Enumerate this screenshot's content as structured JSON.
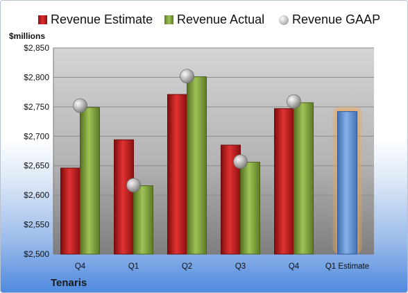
{
  "legend": {
    "estimate": "Revenue Estimate",
    "actual": "Revenue Actual",
    "gaap": "Revenue GAAP"
  },
  "ylabel": "$millions",
  "company": "Tenaris",
  "colors": {
    "estimate": "#d42020",
    "actual": "#8db042",
    "gaap": "#b0b0b0",
    "forecast": "#6f9fdc",
    "forecast_glow": "#f2a24a"
  },
  "chart_data": {
    "type": "bar",
    "categories": [
      "Q4",
      "Q1",
      "Q2",
      "Q3",
      "Q4",
      "Q1 Estimate"
    ],
    "series": [
      {
        "name": "Revenue Estimate",
        "values": [
          2646,
          2694,
          2771,
          2685,
          2747,
          2742
        ]
      },
      {
        "name": "Revenue Actual",
        "values": [
          2749,
          2616,
          2801,
          2656,
          2757,
          null
        ]
      },
      {
        "name": "Revenue GAAP",
        "values": [
          2752,
          2617,
          2802,
          2657,
          2759,
          null
        ]
      }
    ],
    "ylabel": "$millions",
    "ylim": [
      2500,
      2850
    ],
    "yticks": [
      "$2,500",
      "$2,550",
      "$2,600",
      "$2,650",
      "$2,700",
      "$2,750",
      "$2,800",
      "$2,850"
    ],
    "grid": true,
    "legend_position": "top"
  }
}
